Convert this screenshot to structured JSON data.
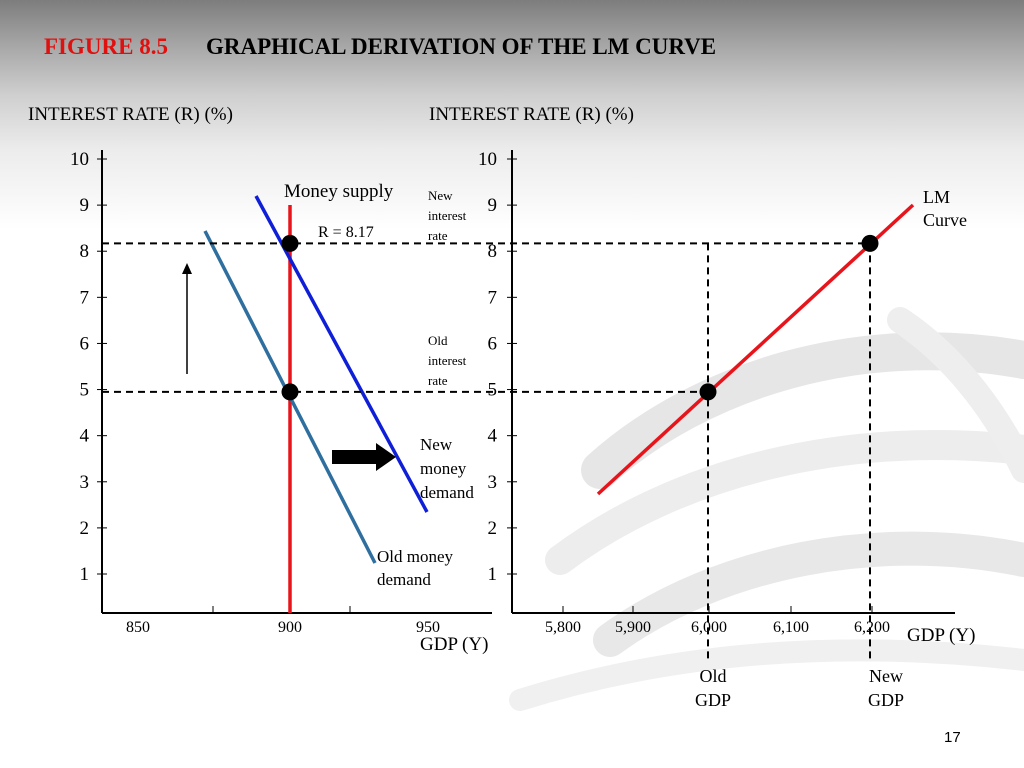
{
  "slide": {
    "figure_label": "FIGURE 8.5",
    "title": "GRAPHICAL DERIVATION OF THE LM  CURVE",
    "page_number": "17"
  },
  "chart_data": [
    {
      "type": "line",
      "ylabel": "INTEREST RATE (R) (%)",
      "xlabel": "GDP (Y)",
      "x_ticks": [
        850,
        900,
        950
      ],
      "x_tick_labels": [
        "850",
        "900",
        "950"
      ],
      "y_ticks": [
        1,
        2,
        3,
        4,
        5,
        6,
        7,
        8,
        9,
        10
      ],
      "xlim": [
        839,
        961
      ],
      "ylim": [
        0.15,
        10
      ],
      "grid": false,
      "series": [
        {
          "name": "Money supply",
          "color": "#e8141b",
          "x": [
            900,
            900
          ],
          "y": [
            0,
            9.2
          ]
        },
        {
          "name": "Old money demand",
          "color": "#2e6f9f",
          "x": [
            875,
            931
          ],
          "y": [
            8.45,
            1.25
          ]
        },
        {
          "name": "New money demand",
          "color": "#0f1fd8",
          "x": [
            890,
            950
          ],
          "y": [
            9.2,
            2.4
          ]
        }
      ],
      "points": [
        {
          "x": 900,
          "y": 8.17
        },
        {
          "x": 900,
          "y": 4.95
        }
      ],
      "reference_lines": [
        {
          "axis": "y",
          "value": 8.17
        },
        {
          "axis": "y",
          "value": 4.95
        }
      ],
      "annotations": [
        {
          "text": "R = 8.17"
        },
        {
          "text": "Money supply"
        },
        {
          "text": "New money demand"
        },
        {
          "text": "Old money demand"
        }
      ]
    },
    {
      "type": "line",
      "ylabel": "INTEREST RATE (R) (%)",
      "xlabel": "GDP (Y)",
      "x_ticks": [
        5800,
        5900,
        6000,
        6100,
        6200
      ],
      "x_tick_labels": [
        "5,800",
        "5,900",
        "6,000",
        "6,100",
        "6,200"
      ],
      "y_ticks": [
        1,
        2,
        3,
        4,
        5,
        6,
        7,
        8,
        9,
        10
      ],
      "xlim": [
        5740,
        6310
      ],
      "ylim": [
        0.15,
        10
      ],
      "grid": false,
      "series": [
        {
          "name": "LM Curve",
          "color": "#e8141b",
          "x": [
            5860,
            6255
          ],
          "y": [
            2.75,
            9.0
          ]
        }
      ],
      "points": [
        {
          "x": 6000,
          "y": 4.95
        },
        {
          "x": 6200,
          "y": 8.17
        }
      ],
      "reference_lines": [
        {
          "axis": "x",
          "value": 6000
        },
        {
          "axis": "x",
          "value": 6200
        }
      ],
      "annotations": [
        {
          "text": "New interest rate"
        },
        {
          "text": "Old interest rate"
        },
        {
          "text": "LM Curve"
        },
        {
          "text": "Old GDP"
        },
        {
          "text": "New GDP"
        }
      ]
    }
  ]
}
